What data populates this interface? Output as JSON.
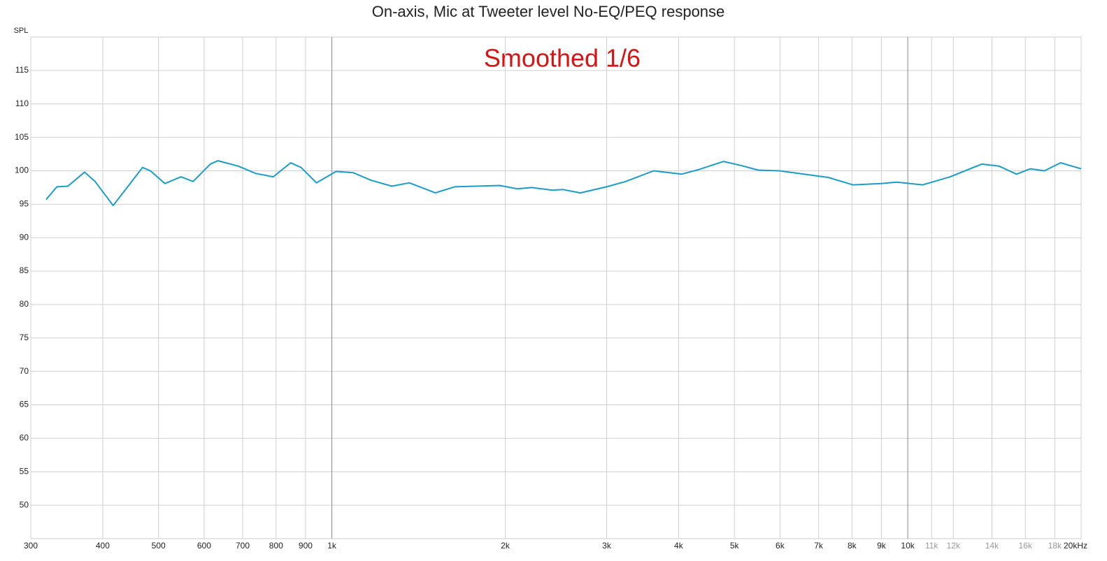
{
  "chart_data": {
    "type": "line",
    "title": "On-axis, Mic at Tweeter level No-EQ/PEQ response",
    "annotation": "Smoothed 1/6",
    "y_label": "SPL",
    "log_x": true,
    "grid": true,
    "color": "#1a9cc8",
    "x": [
      319,
      333,
      348,
      372,
      388,
      417,
      440,
      469,
      484,
      513,
      547,
      574,
      615,
      634,
      688,
      738,
      791,
      848,
      884,
      940,
      1017,
      1090,
      1169,
      1271,
      1363,
      1512,
      1634,
      1776,
      1958,
      2101,
      2221,
      2416,
      2519,
      2700,
      3000,
      3236,
      3620,
      4046,
      4340,
      4787,
      5131,
      5500,
      5985,
      6602,
      7280,
      8030,
      8975,
      9572,
      10617,
      11850,
      13440,
      14410,
      15446,
      16330,
      17270,
      18420,
      20000
    ],
    "values": [
      95.7,
      97.6,
      97.7,
      99.8,
      98.4,
      94.8,
      97.4,
      100.5,
      100.0,
      98.1,
      99.1,
      98.4,
      101.0,
      101.5,
      100.7,
      99.6,
      99.1,
      101.2,
      100.5,
      98.2,
      99.9,
      99.7,
      98.6,
      97.7,
      98.2,
      96.7,
      97.6,
      97.7,
      97.8,
      97.3,
      97.5,
      97.1,
      97.2,
      96.7,
      97.6,
      98.4,
      100.0,
      99.5,
      100.2,
      101.4,
      100.8,
      100.1,
      100.0,
      99.5,
      99.0,
      97.9,
      98.1,
      98.3,
      97.9,
      99.1,
      101.0,
      100.7,
      99.5,
      100.3,
      100.0,
      101.2,
      100.3
    ],
    "xlim": [
      300,
      20000
    ],
    "xticks": [
      300,
      400,
      500,
      600,
      700,
      800,
      900,
      {
        "value": 1000,
        "label": "1k"
      },
      {
        "value": 2000,
        "label": "2k"
      },
      {
        "value": 3000,
        "label": "3k"
      },
      {
        "value": 4000,
        "label": "4k"
      },
      {
        "value": 5000,
        "label": "5k"
      },
      {
        "value": 6000,
        "label": "6k"
      },
      {
        "value": 7000,
        "label": "7k"
      },
      {
        "value": 8000,
        "label": "8k"
      },
      {
        "value": 9000,
        "label": "9k"
      },
      {
        "value": 10000,
        "label": "10k"
      },
      {
        "value": 11000,
        "label": "11k"
      },
      {
        "value": 12000,
        "label": "12k"
      },
      {
        "value": 14000,
        "label": "14k"
      },
      {
        "value": 16000,
        "label": "16k"
      },
      {
        "value": 18000,
        "label": "18k"
      },
      {
        "value": 20000,
        "label": "20kHz"
      }
    ],
    "ylim": [
      45,
      120
    ],
    "yticks": [
      50,
      55,
      60,
      65,
      70,
      75,
      80,
      85,
      90,
      95,
      100,
      105,
      110,
      115
    ]
  }
}
